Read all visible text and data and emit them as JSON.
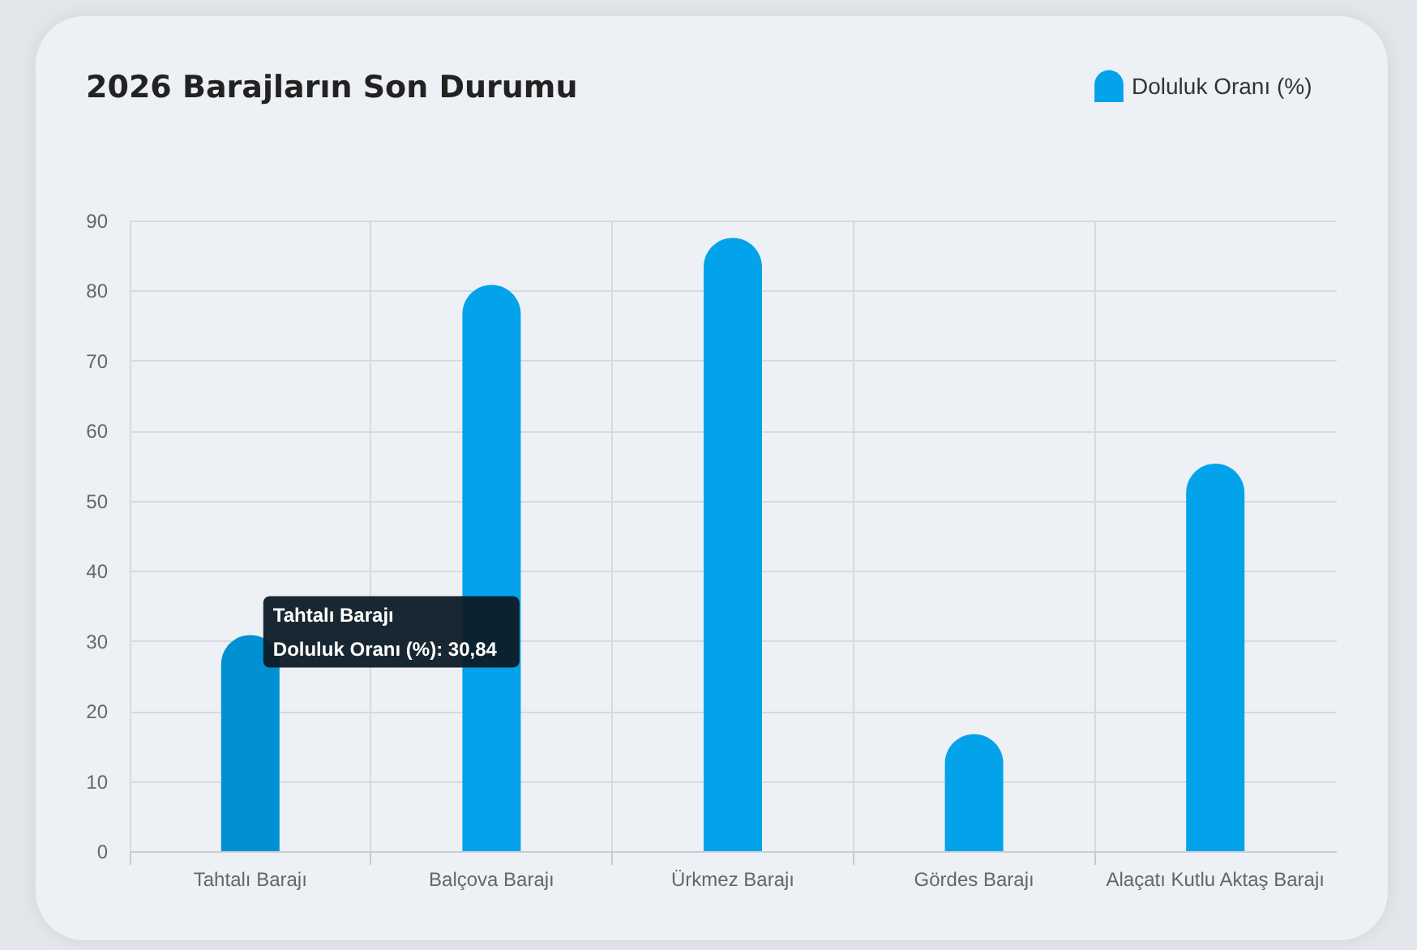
{
  "chart_data": {
    "type": "bar",
    "title": "2026 Barajların Son Durumu",
    "categories": [
      "Tahtalı Barajı",
      "Balçova Barajı",
      "Ürkmez Barajı",
      "Gördes Barajı",
      "Alaçatı Kutlu Aktaş Barajı"
    ],
    "series": [
      {
        "name": "Doluluk Oranı (%)",
        "color": "#03a3eb",
        "values": [
          30.84,
          80.8,
          87.5,
          16.7,
          55.3
        ],
        "colors": [
          "#0090d3",
          "#03a3eb",
          "#03a3eb",
          "#03a3eb",
          "#03a3eb"
        ]
      }
    ],
    "ylim": [
      0,
      90
    ],
    "yticks": [
      0,
      10,
      20,
      30,
      40,
      50,
      60,
      70,
      80,
      90
    ],
    "grid": true,
    "legend": "top right",
    "annotations": [
      {
        "text": "Tahtalı Barajı",
        "x": "Tahtalı Barajı",
        "y": 30.84
      },
      {
        "text": "Doluluk Oranı (%): 30,84",
        "x": "Tahtalı Barajı",
        "y": 30.84
      }
    ]
  }
}
